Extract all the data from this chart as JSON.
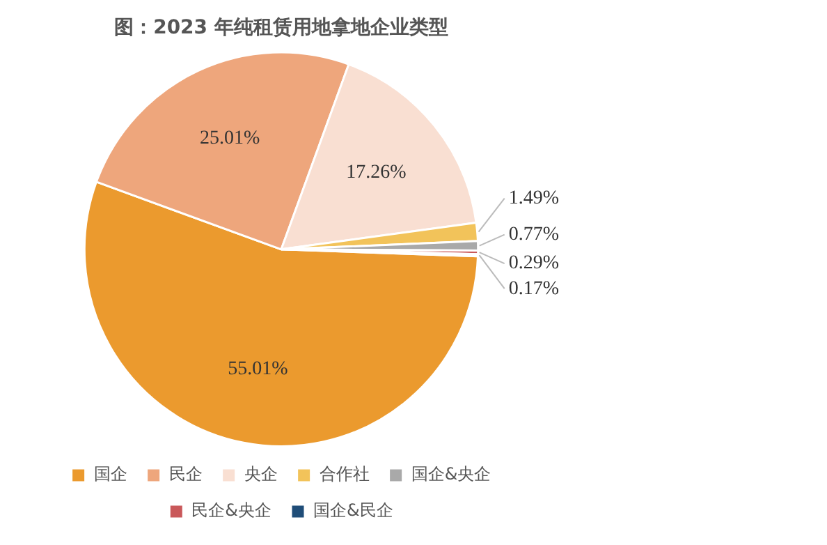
{
  "chart_data": {
    "type": "pie",
    "title": "图：2023 年纯租赁用地拿地企业类型",
    "categories": [
      "国企",
      "民企",
      "央企",
      "合作社",
      "国企&央企",
      "民企&央企",
      "国企&民企"
    ],
    "values": [
      55.01,
      25.01,
      17.26,
      1.49,
      0.77,
      0.29,
      0.17
    ],
    "colors": [
      "#eb9a2e",
      "#eea67c",
      "#f9dfd2",
      "#f2c35a",
      "#a9a9a9",
      "#c9585a",
      "#1f4d78"
    ],
    "value_labels": [
      "55.01%",
      "25.01%",
      "17.26%",
      "1.49%",
      "0.77%",
      "0.29%",
      "0.17%"
    ],
    "legend": "bottom"
  }
}
